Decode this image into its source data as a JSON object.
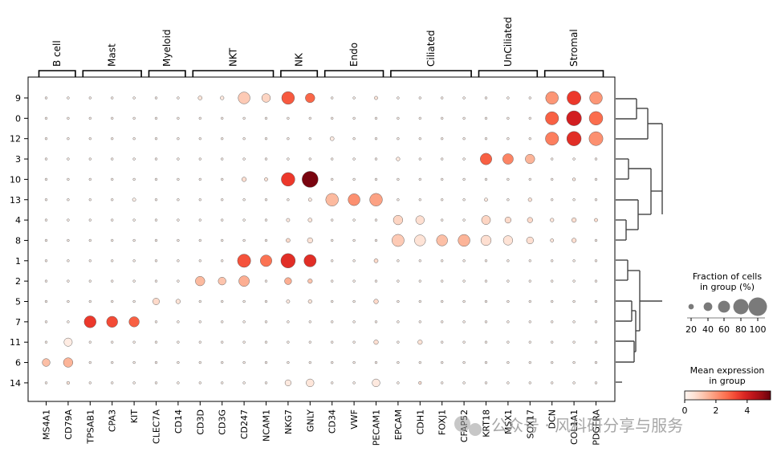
{
  "chart_data": {
    "type": "dotplot",
    "genes": [
      "MS4A1",
      "CD79A",
      "TPSAB1",
      "CPA3",
      "KIT",
      "CLEC7A",
      "CD14",
      "CD3D",
      "CD3G",
      "CD247",
      "NCAM1",
      "NKG7",
      "GNLY",
      "CD34",
      "VWF",
      "PECAM1",
      "EPCAM",
      "CDH1",
      "FOXJ1",
      "CFAP52",
      "KRT18",
      "MSX1",
      "SOX17",
      "DCN",
      "COL1A1",
      "PDGFRA"
    ],
    "groups": [
      {
        "label": "B cell",
        "start": 0,
        "end": 1
      },
      {
        "label": "Mast",
        "start": 2,
        "end": 4
      },
      {
        "label": "Myeloid",
        "start": 5,
        "end": 6
      },
      {
        "label": "NKT",
        "start": 7,
        "end": 10
      },
      {
        "label": "NK",
        "start": 11,
        "end": 12
      },
      {
        "label": "Endo",
        "start": 13,
        "end": 15
      },
      {
        "label": "Ciliated",
        "start": 16,
        "end": 19
      },
      {
        "label": "UnCiliated",
        "start": 20,
        "end": 22
      },
      {
        "label": "Stromal",
        "start": 23,
        "end": 25
      }
    ],
    "clusters": [
      "9",
      "0",
      "12",
      "3",
      "10",
      "13",
      "4",
      "8",
      "1",
      "2",
      "5",
      "7",
      "11",
      "6",
      "14"
    ],
    "big_dots": [
      {
        "c": "9",
        "g": "CD3D",
        "f": 12,
        "e": 0.5
      },
      {
        "c": "9",
        "g": "CD3G",
        "f": 10,
        "e": 0.4
      },
      {
        "c": "9",
        "g": "CD247",
        "f": 60,
        "e": 1.1
      },
      {
        "c": "9",
        "g": "NCAM1",
        "f": 40,
        "e": 0.9
      },
      {
        "c": "9",
        "g": "NKG7",
        "f": 65,
        "e": 3.0
      },
      {
        "c": "9",
        "g": "GNLY",
        "f": 45,
        "e": 2.8
      },
      {
        "c": "9",
        "g": "PECAM1",
        "f": 8,
        "e": 0.5
      },
      {
        "c": "9",
        "g": "DCN",
        "f": 65,
        "e": 2.0
      },
      {
        "c": "9",
        "g": "COL1A1",
        "f": 72,
        "e": 3.5
      },
      {
        "c": "9",
        "g": "PDGFRA",
        "f": 65,
        "e": 2.0
      },
      {
        "c": "0",
        "g": "DCN",
        "f": 68,
        "e": 2.9
      },
      {
        "c": "0",
        "g": "COL1A1",
        "f": 78,
        "e": 4.0
      },
      {
        "c": "0",
        "g": "PDGFRA",
        "f": 70,
        "e": 2.7
      },
      {
        "c": "12",
        "g": "CD34",
        "f": 12,
        "e": 0.3
      },
      {
        "c": "12",
        "g": "DCN",
        "f": 68,
        "e": 2.4
      },
      {
        "c": "12",
        "g": "COL1A1",
        "f": 75,
        "e": 3.7
      },
      {
        "c": "12",
        "g": "PDGFRA",
        "f": 72,
        "e": 2.1
      },
      {
        "c": "3",
        "g": "EPCAM",
        "f": 10,
        "e": 0.4
      },
      {
        "c": "3",
        "g": "KRT18",
        "f": 58,
        "e": 2.9
      },
      {
        "c": "3",
        "g": "MSX1",
        "f": 52,
        "e": 2.3
      },
      {
        "c": "3",
        "g": "SOX17",
        "f": 45,
        "e": 1.5
      },
      {
        "c": "10",
        "g": "CD247",
        "f": 15,
        "e": 0.7
      },
      {
        "c": "10",
        "g": "NCAM1",
        "f": 8,
        "e": 0.6
      },
      {
        "c": "10",
        "g": "NKG7",
        "f": 70,
        "e": 3.5
      },
      {
        "c": "10",
        "g": "GNLY",
        "f": 85,
        "e": 5.3
      },
      {
        "c": "10",
        "g": "COL1A1",
        "f": 5,
        "e": 0.4
      },
      {
        "c": "13",
        "g": "KIT",
        "f": 8,
        "e": 0.2
      },
      {
        "c": "13",
        "g": "GNLY",
        "f": 8,
        "e": 0.4
      },
      {
        "c": "13",
        "g": "CD34",
        "f": 65,
        "e": 1.4
      },
      {
        "c": "13",
        "g": "VWF",
        "f": 60,
        "e": 2.1
      },
      {
        "c": "13",
        "g": "PECAM1",
        "f": 65,
        "e": 1.8
      },
      {
        "c": "13",
        "g": "KRT18",
        "f": 8,
        "e": 0.4
      },
      {
        "c": "13",
        "g": "SOX17",
        "f": 10,
        "e": 0.6
      },
      {
        "c": "4",
        "g": "NKG7",
        "f": 8,
        "e": 0.4
      },
      {
        "c": "4",
        "g": "GNLY",
        "f": 12,
        "e": 0.5
      },
      {
        "c": "4",
        "g": "EPCAM",
        "f": 45,
        "e": 0.9
      },
      {
        "c": "4",
        "g": "CDH1",
        "f": 40,
        "e": 0.7
      },
      {
        "c": "4",
        "g": "KRT18",
        "f": 42,
        "e": 0.9
      },
      {
        "c": "4",
        "g": "MSX1",
        "f": 25,
        "e": 0.8
      },
      {
        "c": "4",
        "g": "SOX17",
        "f": 20,
        "e": 0.8
      },
      {
        "c": "4",
        "g": "DCN",
        "f": 10,
        "e": 0.5
      },
      {
        "c": "4",
        "g": "COL1A1",
        "f": 15,
        "e": 0.7
      },
      {
        "c": "4",
        "g": "PDGFRA",
        "f": 8,
        "e": 0.7
      },
      {
        "c": "8",
        "g": "NKG7",
        "f": 12,
        "e": 0.8
      },
      {
        "c": "8",
        "g": "GNLY",
        "f": 20,
        "e": 0.6
      },
      {
        "c": "8",
        "g": "EPCAM",
        "f": 62,
        "e": 1.1
      },
      {
        "c": "8",
        "g": "CDH1",
        "f": 55,
        "e": 0.6
      },
      {
        "c": "8",
        "g": "FOXJ1",
        "f": 55,
        "e": 1.3
      },
      {
        "c": "8",
        "g": "CFAP52",
        "f": 60,
        "e": 1.5
      },
      {
        "c": "8",
        "g": "KRT18",
        "f": 50,
        "e": 0.7
      },
      {
        "c": "8",
        "g": "MSX1",
        "f": 45,
        "e": 0.6
      },
      {
        "c": "8",
        "g": "SOX17",
        "f": 30,
        "e": 0.7
      },
      {
        "c": "8",
        "g": "DCN",
        "f": 8,
        "e": 0.5
      },
      {
        "c": "8",
        "g": "COL1A1",
        "f": 15,
        "e": 0.7
      },
      {
        "c": "1",
        "g": "CD247",
        "f": 68,
        "e": 3.1
      },
      {
        "c": "1",
        "g": "NCAM1",
        "f": 58,
        "e": 2.6
      },
      {
        "c": "1",
        "g": "NKG7",
        "f": 75,
        "e": 3.7
      },
      {
        "c": "1",
        "g": "GNLY",
        "f": 62,
        "e": 3.7
      },
      {
        "c": "1",
        "g": "PECAM1",
        "f": 12,
        "e": 0.8
      },
      {
        "c": "2",
        "g": "CD3D",
        "f": 45,
        "e": 1.4
      },
      {
        "c": "2",
        "g": "CD3G",
        "f": 35,
        "e": 1.2
      },
      {
        "c": "2",
        "g": "CD247",
        "f": 52,
        "e": 1.6
      },
      {
        "c": "2",
        "g": "NKG7",
        "f": 30,
        "e": 1.6
      },
      {
        "c": "2",
        "g": "GNLY",
        "f": 15,
        "e": 1.2
      },
      {
        "c": "5",
        "g": "CLEC7A",
        "f": 28,
        "e": 0.8
      },
      {
        "c": "5",
        "g": "CD14",
        "f": 15,
        "e": 0.6
      },
      {
        "c": "5",
        "g": "NKG7",
        "f": 8,
        "e": 0.4
      },
      {
        "c": "5",
        "g": "GNLY",
        "f": 10,
        "e": 0.5
      },
      {
        "c": "5",
        "g": "PECAM1",
        "f": 15,
        "e": 0.8
      },
      {
        "c": "7",
        "g": "TPSAB1",
        "f": 60,
        "e": 3.5
      },
      {
        "c": "7",
        "g": "CPA3",
        "f": 55,
        "e": 3.2
      },
      {
        "c": "7",
        "g": "KIT",
        "f": 50,
        "e": 2.9
      },
      {
        "c": "11",
        "g": "CD79A",
        "f": 38,
        "e": 0.3
      },
      {
        "c": "11",
        "g": "PECAM1",
        "f": 15,
        "e": 0.7
      },
      {
        "c": "11",
        "g": "CDH1",
        "f": 15,
        "e": 0.6
      },
      {
        "c": "6",
        "g": "MS4A1",
        "f": 35,
        "e": 1.3
      },
      {
        "c": "6",
        "g": "CD79A",
        "f": 45,
        "e": 1.5
      },
      {
        "c": "14",
        "g": "CD79A",
        "f": 5,
        "e": 0.5
      },
      {
        "c": "14",
        "g": "NKG7",
        "f": 25,
        "e": 0.4
      },
      {
        "c": "14",
        "g": "GNLY",
        "f": 35,
        "e": 0.5
      },
      {
        "c": "14",
        "g": "PECAM1",
        "f": 35,
        "e": 0.4
      },
      {
        "c": "14",
        "g": "CDH1",
        "f": 5,
        "e": 0.7
      }
    ],
    "default_fraction": 1,
    "default_expression": 0.15,
    "size_legend": {
      "title": "Fraction of cells\nin group (%)",
      "values": [
        20,
        40,
        60,
        80,
        100
      ],
      "labels": [
        "20",
        "40",
        "60",
        "80",
        "100"
      ]
    },
    "color_legend": {
      "title": "Mean expression\nin group",
      "min": 0,
      "max": 5.5,
      "ticks": [
        0,
        2,
        4
      ],
      "labels": [
        "0",
        "2",
        "4"
      ],
      "colormap": "Reds"
    },
    "dendrogram": "right"
  },
  "watermark": "公众号 · 风科研分享与服务"
}
